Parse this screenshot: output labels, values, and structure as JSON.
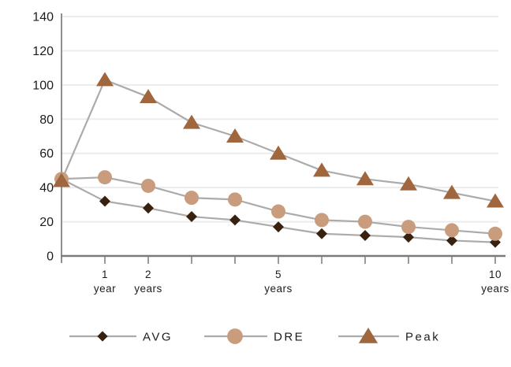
{
  "chart_data": {
    "type": "line",
    "x": [
      0,
      1,
      2,
      3,
      4,
      5,
      6,
      7,
      8,
      9,
      10
    ],
    "series": [
      {
        "name": "AVG",
        "marker": "diamond",
        "marker_color": "#38220F",
        "values": [
          45,
          32,
          28,
          23,
          21,
          17,
          13,
          12,
          11,
          9,
          8
        ]
      },
      {
        "name": "DRE",
        "marker": "circle",
        "marker_color": "#C89C7C",
        "values": [
          45,
          46,
          41,
          34,
          33,
          26,
          21,
          20,
          17,
          15,
          13
        ]
      },
      {
        "name": "Peak",
        "marker": "triangle",
        "marker_color": "#A0663E",
        "values": [
          44,
          103,
          93,
          78,
          70,
          60,
          50,
          45,
          42,
          37,
          32
        ]
      }
    ],
    "line_color": "#ABABAB",
    "ylim": [
      0,
      140
    ],
    "y_ticks": [
      0,
      20,
      40,
      60,
      80,
      100,
      120,
      140
    ],
    "x_tick_positions": [
      1,
      2,
      3,
      4,
      5,
      6,
      7,
      8,
      9,
      10
    ],
    "x_labeled_ticks": [
      {
        "x": 1,
        "value": "1",
        "unit": "year"
      },
      {
        "x": 2,
        "value": "2",
        "unit": "years"
      },
      {
        "x": 5,
        "value": "5",
        "unit": "years"
      },
      {
        "x": 10,
        "value": "10",
        "unit": "years"
      }
    ],
    "grid": "horizontal",
    "legend_position": "bottom",
    "legend": [
      "AVG",
      "DRE",
      "Peak"
    ],
    "colors": {
      "grid": "#ECECEC",
      "axis": "#7A7A7A",
      "tick_mark": "#9B9B9B",
      "text": "#1C1C1C"
    }
  }
}
